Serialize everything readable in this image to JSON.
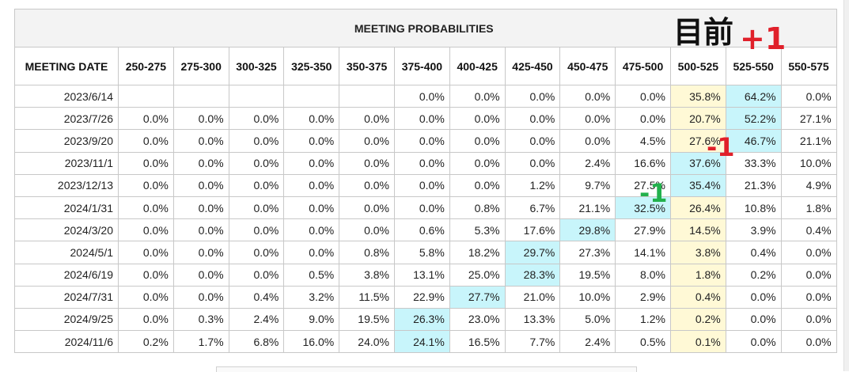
{
  "table": {
    "title": "MEETING PROBABILITIES",
    "date_header": "MEETING DATE",
    "ranges": [
      "250-275",
      "275-300",
      "300-325",
      "325-350",
      "350-375",
      "375-400",
      "400-425",
      "425-450",
      "450-475",
      "475-500",
      "500-525",
      "525-550",
      "550-575"
    ],
    "current_column": 10,
    "colors": {
      "current_range": "#fff9d6",
      "highest_probability": "#c8f5fb"
    },
    "rows": [
      {
        "date": "2023/6/14",
        "values": [
          "",
          "",
          "",
          "",
          "",
          "0.0%",
          "0.0%",
          "0.0%",
          "0.0%",
          "0.0%",
          "35.8%",
          "64.2%",
          "0.0%"
        ],
        "highlight": 11
      },
      {
        "date": "2023/7/26",
        "values": [
          "0.0%",
          "0.0%",
          "0.0%",
          "0.0%",
          "0.0%",
          "0.0%",
          "0.0%",
          "0.0%",
          "0.0%",
          "0.0%",
          "20.7%",
          "52.2%",
          "27.1%"
        ],
        "highlight": 11
      },
      {
        "date": "2023/9/20",
        "values": [
          "0.0%",
          "0.0%",
          "0.0%",
          "0.0%",
          "0.0%",
          "0.0%",
          "0.0%",
          "0.0%",
          "0.0%",
          "4.5%",
          "27.6%",
          "46.7%",
          "21.1%"
        ],
        "highlight": 11
      },
      {
        "date": "2023/11/1",
        "values": [
          "0.0%",
          "0.0%",
          "0.0%",
          "0.0%",
          "0.0%",
          "0.0%",
          "0.0%",
          "0.0%",
          "2.4%",
          "16.6%",
          "37.6%",
          "33.3%",
          "10.0%"
        ],
        "highlight": 10
      },
      {
        "date": "2023/12/13",
        "values": [
          "0.0%",
          "0.0%",
          "0.0%",
          "0.0%",
          "0.0%",
          "0.0%",
          "0.0%",
          "1.2%",
          "9.7%",
          "27.5%",
          "35.4%",
          "21.3%",
          "4.9%"
        ],
        "highlight": 10
      },
      {
        "date": "2024/1/31",
        "values": [
          "0.0%",
          "0.0%",
          "0.0%",
          "0.0%",
          "0.0%",
          "0.0%",
          "0.8%",
          "6.7%",
          "21.1%",
          "32.5%",
          "26.4%",
          "10.8%",
          "1.8%"
        ],
        "highlight": 9
      },
      {
        "date": "2024/3/20",
        "values": [
          "0.0%",
          "0.0%",
          "0.0%",
          "0.0%",
          "0.0%",
          "0.6%",
          "5.3%",
          "17.6%",
          "29.8%",
          "27.9%",
          "14.5%",
          "3.9%",
          "0.4%"
        ],
        "highlight": 8
      },
      {
        "date": "2024/5/1",
        "values": [
          "0.0%",
          "0.0%",
          "0.0%",
          "0.0%",
          "0.8%",
          "5.8%",
          "18.2%",
          "29.7%",
          "27.3%",
          "14.1%",
          "3.8%",
          "0.4%",
          "0.0%"
        ],
        "highlight": 7
      },
      {
        "date": "2024/6/19",
        "values": [
          "0.0%",
          "0.0%",
          "0.0%",
          "0.5%",
          "3.8%",
          "13.1%",
          "25.0%",
          "28.3%",
          "19.5%",
          "8.0%",
          "1.8%",
          "0.2%",
          "0.0%"
        ],
        "highlight": 7
      },
      {
        "date": "2024/7/31",
        "values": [
          "0.0%",
          "0.0%",
          "0.4%",
          "3.2%",
          "11.5%",
          "22.9%",
          "27.7%",
          "21.0%",
          "10.0%",
          "2.9%",
          "0.4%",
          "0.0%",
          "0.0%"
        ],
        "highlight": 6
      },
      {
        "date": "2024/9/25",
        "values": [
          "0.0%",
          "0.3%",
          "2.4%",
          "9.0%",
          "19.5%",
          "26.3%",
          "23.0%",
          "13.3%",
          "5.0%",
          "1.2%",
          "0.2%",
          "0.0%",
          "0.0%"
        ],
        "highlight": 5
      },
      {
        "date": "2024/11/6",
        "values": [
          "0.2%",
          "1.7%",
          "6.8%",
          "16.0%",
          "24.0%",
          "24.1%",
          "16.5%",
          "7.7%",
          "2.4%",
          "0.5%",
          "0.1%",
          "0.0%",
          "0.0%"
        ],
        "highlight": 5
      }
    ]
  },
  "annotations": {
    "current_label": "目前",
    "plus_one": "+1",
    "minus_one_red": "-1",
    "minus_one_green": "-1"
  }
}
